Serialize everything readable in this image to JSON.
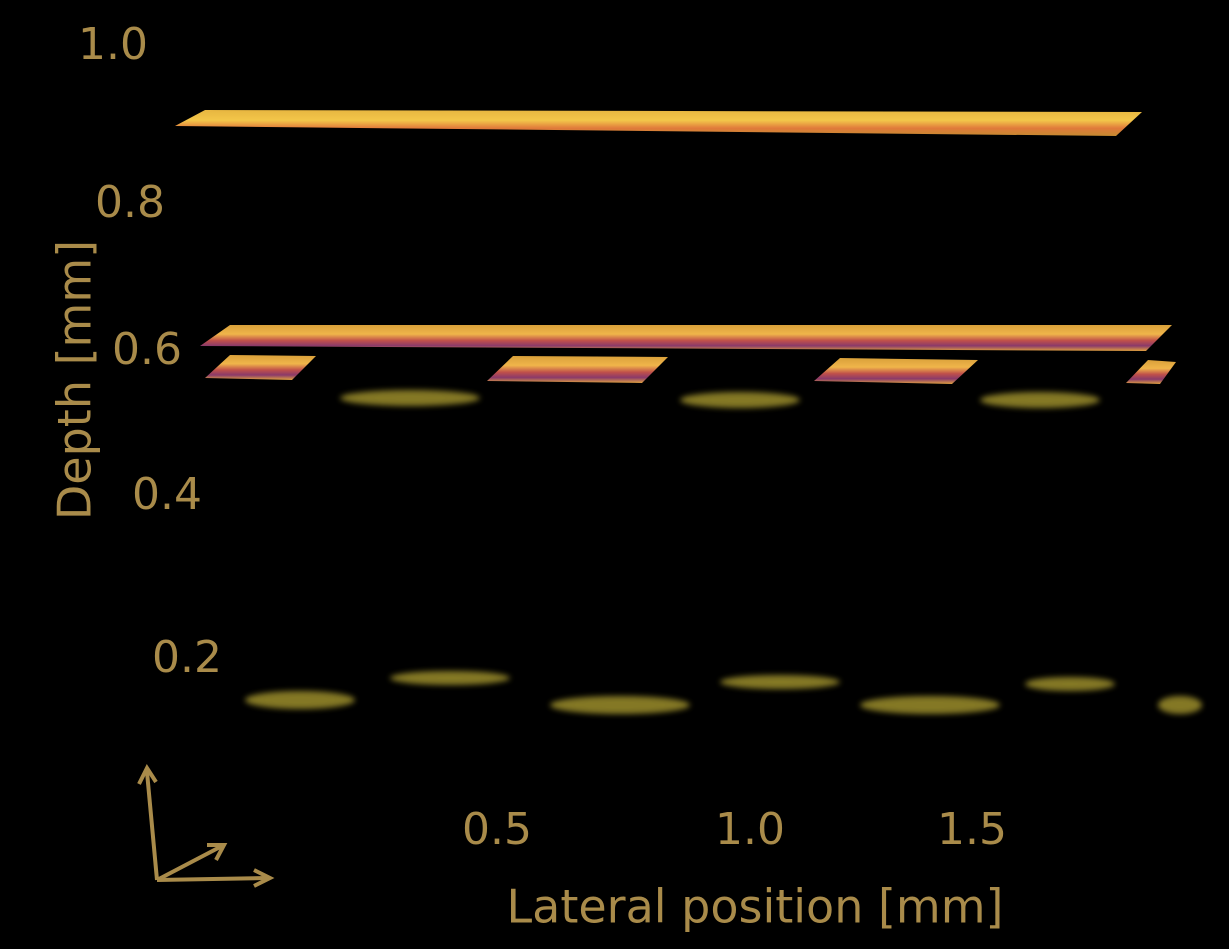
{
  "axes": {
    "y_label": "Depth [mm]",
    "x_label": "Lateral position [mm]",
    "y_ticks": [
      "1.0",
      "0.8",
      "0.6",
      "0.4",
      "0.2"
    ],
    "x_ticks": [
      "0.5",
      "1.0",
      "1.5"
    ]
  }
}
